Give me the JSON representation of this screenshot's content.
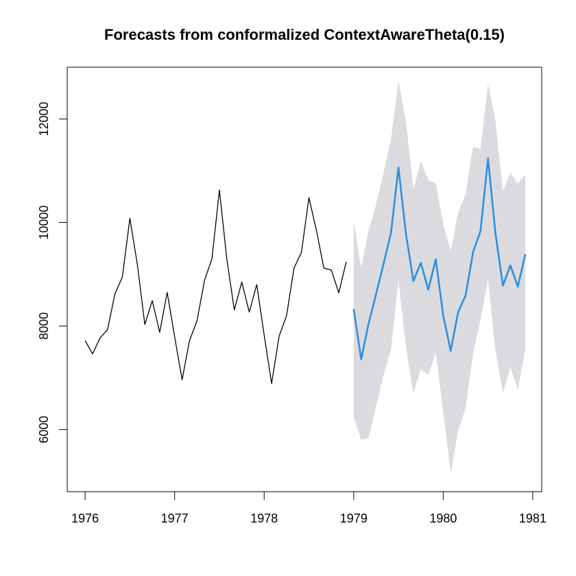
{
  "chart_data": {
    "type": "line",
    "title": "Forecasts from conformalized ContextAwareTheta(0.15)",
    "xlabel": "",
    "ylabel": "",
    "xlim": [
      1975.8,
      1981.1
    ],
    "ylim": [
      4800,
      13000
    ],
    "x_ticks": [
      1976,
      1977,
      1978,
      1979,
      1980,
      1981
    ],
    "x_tick_labels": [
      "1976",
      "1977",
      "1978",
      "1979",
      "1980",
      "1981"
    ],
    "y_ticks": [
      6000,
      8000,
      10000,
      12000
    ],
    "y_tick_labels": [
      "6000",
      "8000",
      "10000",
      "12000"
    ],
    "colors": {
      "history": "#000000",
      "forecast": "#2b8fe0",
      "interval": "#dbdbdf"
    },
    "series": [
      {
        "name": "history",
        "x_start": 1976.0,
        "step": 0.08333333,
        "values": [
          7720,
          7460,
          7770,
          7930,
          8620,
          8950,
          10080,
          9190,
          8030,
          8490,
          7880,
          8650,
          7790,
          6960,
          7720,
          8100,
          8880,
          9300,
          10630,
          9290,
          8310,
          8850,
          8270,
          8800,
          7830,
          6890,
          7800,
          8200,
          9120,
          9420,
          10480,
          9850,
          9120,
          9080,
          8640,
          9240
        ]
      },
      {
        "name": "forecast",
        "x_start": 1979.0,
        "step": 0.08333333,
        "values": [
          8330,
          7360,
          8050,
          8620,
          9200,
          9800,
          11060,
          9780,
          8870,
          9220,
          8700,
          9290,
          8200,
          7520,
          8270,
          8590,
          9430,
          9840,
          11240,
          9790,
          8780,
          9170,
          8760,
          9390
        ]
      },
      {
        "name": "prediction-interval",
        "x_start": 1979.0,
        "step": 0.08333333,
        "lower": [
          6230,
          5800,
          5840,
          6460,
          7050,
          7550,
          8880,
          7600,
          6690,
          7170,
          7050,
          7490,
          6340,
          5150,
          5980,
          6410,
          7470,
          8120,
          8910,
          7530,
          6710,
          7210,
          6780,
          7560
        ],
        "upper": [
          10050,
          9110,
          9850,
          10350,
          10960,
          11610,
          12720,
          11960,
          10640,
          11190,
          10820,
          10760,
          9970,
          9450,
          10190,
          10550,
          11460,
          11420,
          12680,
          11970,
          10610,
          10960,
          10750,
          10930
        ]
      }
    ]
  }
}
